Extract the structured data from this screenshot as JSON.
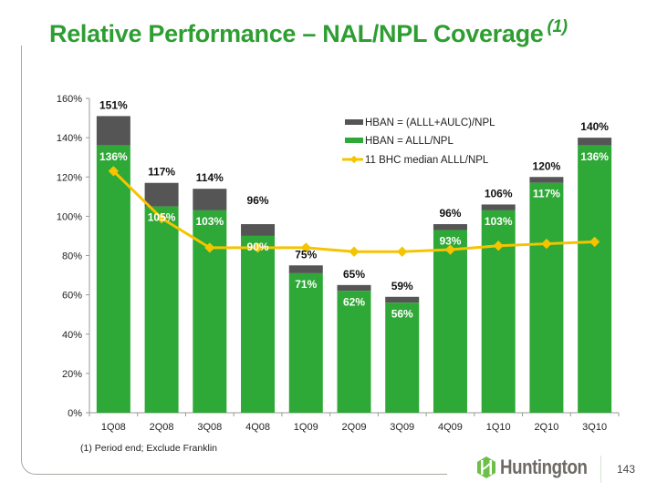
{
  "slide": {
    "title": "Relative Performance – NAL/NPL Coverage",
    "title_footnote_ref": "(1)",
    "footnote": "(1)  Period end; Exclude Franklin",
    "logo_text": "Huntington",
    "page_number": "143"
  },
  "colors": {
    "title": "#2e9e32",
    "bar_total": "#555555",
    "bar_allll": "#2ea836",
    "median_line": "#f5c400"
  },
  "chart_data": {
    "type": "bar",
    "title": "Relative Performance – NAL/NPL Coverage",
    "xlabel": "",
    "ylabel": "",
    "ylim": [
      0,
      160
    ],
    "yticks": [
      0,
      20,
      40,
      60,
      80,
      100,
      120,
      140,
      160
    ],
    "ytick_labels": [
      "0%",
      "20%",
      "40%",
      "60%",
      "80%",
      "100%",
      "120%",
      "140%",
      "160%"
    ],
    "grid": false,
    "legend_position": "top-right",
    "categories": [
      "1Q08",
      "2Q08",
      "3Q08",
      "4Q08",
      "1Q09",
      "2Q09",
      "3Q09",
      "4Q09",
      "1Q10",
      "2Q10",
      "3Q10"
    ],
    "series": [
      {
        "name": "HBAN = (ALLL+AULC)/NPL",
        "kind": "bar-total",
        "values": [
          151,
          117,
          114,
          96,
          75,
          65,
          59,
          96,
          106,
          120,
          140
        ],
        "labels": [
          "151%",
          "117%",
          "114%",
          "96%",
          "75%",
          "65%",
          "59%",
          "96%",
          "106%",
          "120%",
          "140%"
        ]
      },
      {
        "name": "HBAN = ALLL/NPL",
        "kind": "bar",
        "values": [
          136,
          105,
          103,
          90,
          71,
          62,
          56,
          93,
          103,
          117,
          136
        ],
        "labels": [
          "136%",
          "105%",
          "103%",
          "90%",
          "71%",
          "62%",
          "56%",
          "93%",
          "103%",
          "117%",
          "136%"
        ]
      },
      {
        "name": "11 BHC median ALLL/NPL",
        "kind": "line",
        "values": [
          123,
          99,
          84,
          84,
          84,
          82,
          82,
          83,
          85,
          86,
          87
        ]
      }
    ]
  }
}
